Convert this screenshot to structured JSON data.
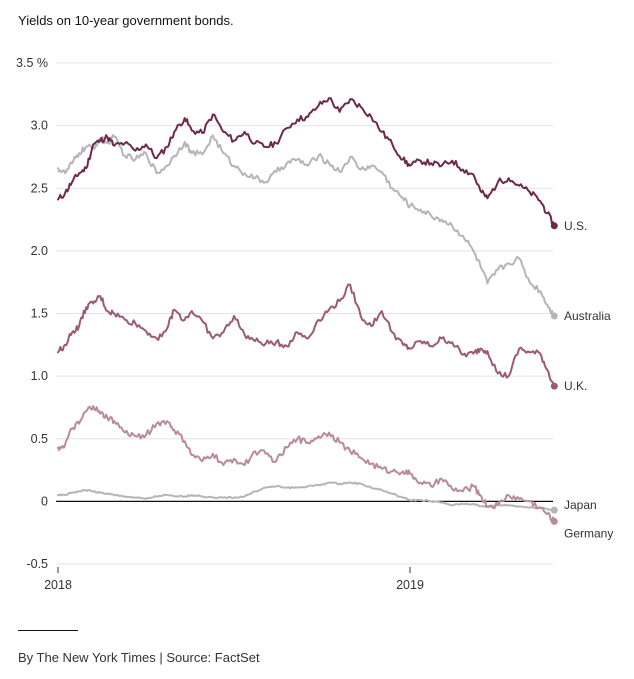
{
  "subtitle": "Yields on 10-year government bonds.",
  "credit": "By The New York Times | Source: FactSet",
  "chart_data": {
    "type": "line",
    "title": "Yields on 10-year government bonds.",
    "xlabel": "",
    "ylabel": "%",
    "ylim": [
      -0.5,
      3.5
    ],
    "xlim": [
      2018.0,
      2019.41
    ],
    "y_ticks": [
      {
        "value": 3.5,
        "label": "3.5 %"
      },
      {
        "value": 3.0,
        "label": "3.0"
      },
      {
        "value": 2.5,
        "label": "2.5"
      },
      {
        "value": 2.0,
        "label": "2.0"
      },
      {
        "value": 1.5,
        "label": "1.5"
      },
      {
        "value": 1.0,
        "label": "1.0"
      },
      {
        "value": 0.5,
        "label": "0.5"
      },
      {
        "value": 0,
        "label": "0"
      },
      {
        "value": -0.5,
        "label": "-0.5"
      }
    ],
    "x_ticks": [
      {
        "value": 2018.0,
        "label": "2018"
      },
      {
        "value": 2019.0,
        "label": "2019"
      }
    ],
    "grid": true,
    "legend": "direct labels at right end of each line",
    "series": [
      {
        "name": "U.S.",
        "color": "#6e2a4a",
        "x": [
          2018.0,
          2018.02,
          2018.04,
          2018.06,
          2018.08,
          2018.1,
          2018.12,
          2018.14,
          2018.16,
          2018.19,
          2018.22,
          2018.25,
          2018.28,
          2018.31,
          2018.33,
          2018.36,
          2018.38,
          2018.41,
          2018.44,
          2018.47,
          2018.5,
          2018.53,
          2018.56,
          2018.59,
          2018.62,
          2018.65,
          2018.68,
          2018.71,
          2018.74,
          2018.77,
          2018.8,
          2018.83,
          2018.86,
          2018.89,
          2018.92,
          2018.95,
          2018.98,
          2019.0,
          2019.03,
          2019.06,
          2019.09,
          2019.12,
          2019.15,
          2019.18,
          2019.2,
          2019.22,
          2019.25,
          2019.28,
          2019.31,
          2019.34,
          2019.37,
          2019.39,
          2019.41
        ],
        "values": [
          2.41,
          2.46,
          2.55,
          2.62,
          2.66,
          2.85,
          2.88,
          2.91,
          2.84,
          2.86,
          2.8,
          2.85,
          2.74,
          2.83,
          2.95,
          3.06,
          2.96,
          2.94,
          3.09,
          2.95,
          2.88,
          2.95,
          2.86,
          2.83,
          2.86,
          2.98,
          3.05,
          3.07,
          3.16,
          3.22,
          3.11,
          3.21,
          3.15,
          3.07,
          2.95,
          2.85,
          2.73,
          2.68,
          2.72,
          2.7,
          2.68,
          2.72,
          2.65,
          2.61,
          2.48,
          2.42,
          2.55,
          2.58,
          2.52,
          2.47,
          2.4,
          2.3,
          2.2
        ]
      },
      {
        "name": "Australia",
        "color": "#b5b5b5",
        "x": [
          2018.0,
          2018.02,
          2018.04,
          2018.06,
          2018.08,
          2018.1,
          2018.12,
          2018.14,
          2018.16,
          2018.19,
          2018.22,
          2018.25,
          2018.28,
          2018.31,
          2018.33,
          2018.36,
          2018.38,
          2018.41,
          2018.44,
          2018.47,
          2018.5,
          2018.53,
          2018.56,
          2018.59,
          2018.62,
          2018.65,
          2018.68,
          2018.71,
          2018.74,
          2018.77,
          2018.8,
          2018.83,
          2018.86,
          2018.89,
          2018.92,
          2018.95,
          2018.98,
          2019.0,
          2019.03,
          2019.06,
          2019.09,
          2019.12,
          2019.15,
          2019.18,
          2019.2,
          2019.22,
          2019.25,
          2019.28,
          2019.31,
          2019.34,
          2019.37,
          2019.39,
          2019.41
        ],
        "values": [
          2.66,
          2.62,
          2.7,
          2.78,
          2.83,
          2.82,
          2.9,
          2.86,
          2.91,
          2.76,
          2.73,
          2.78,
          2.62,
          2.68,
          2.76,
          2.87,
          2.78,
          2.77,
          2.92,
          2.78,
          2.68,
          2.62,
          2.58,
          2.55,
          2.63,
          2.7,
          2.73,
          2.68,
          2.76,
          2.7,
          2.63,
          2.75,
          2.65,
          2.68,
          2.63,
          2.5,
          2.42,
          2.36,
          2.33,
          2.28,
          2.25,
          2.2,
          2.12,
          2.0,
          1.88,
          1.74,
          1.85,
          1.9,
          1.94,
          1.75,
          1.68,
          1.57,
          1.48
        ]
      },
      {
        "name": "U.K.",
        "color": "#9c5a74",
        "x": [
          2018.0,
          2018.02,
          2018.04,
          2018.06,
          2018.08,
          2018.1,
          2018.12,
          2018.14,
          2018.16,
          2018.19,
          2018.22,
          2018.25,
          2018.28,
          2018.31,
          2018.33,
          2018.36,
          2018.38,
          2018.41,
          2018.44,
          2018.47,
          2018.5,
          2018.53,
          2018.56,
          2018.59,
          2018.62,
          2018.65,
          2018.68,
          2018.71,
          2018.74,
          2018.77,
          2018.8,
          2018.83,
          2018.86,
          2018.89,
          2018.92,
          2018.95,
          2018.98,
          2019.0,
          2019.03,
          2019.06,
          2019.09,
          2019.12,
          2019.15,
          2019.18,
          2019.2,
          2019.22,
          2019.25,
          2019.28,
          2019.31,
          2019.34,
          2019.37,
          2019.39,
          2019.41
        ],
        "values": [
          1.19,
          1.25,
          1.35,
          1.4,
          1.55,
          1.58,
          1.64,
          1.52,
          1.5,
          1.45,
          1.42,
          1.36,
          1.3,
          1.38,
          1.53,
          1.45,
          1.52,
          1.44,
          1.3,
          1.35,
          1.48,
          1.33,
          1.28,
          1.26,
          1.27,
          1.24,
          1.35,
          1.3,
          1.45,
          1.53,
          1.6,
          1.73,
          1.48,
          1.4,
          1.52,
          1.35,
          1.25,
          1.22,
          1.28,
          1.24,
          1.3,
          1.27,
          1.17,
          1.18,
          1.22,
          1.2,
          1.02,
          1.0,
          1.22,
          1.19,
          1.18,
          1.05,
          0.92
        ]
      },
      {
        "name": "Germany",
        "color": "#b98a9c",
        "x": [
          2018.0,
          2018.02,
          2018.04,
          2018.06,
          2018.08,
          2018.1,
          2018.12,
          2018.14,
          2018.16,
          2018.19,
          2018.22,
          2018.25,
          2018.28,
          2018.31,
          2018.33,
          2018.36,
          2018.38,
          2018.41,
          2018.44,
          2018.47,
          2018.5,
          2018.53,
          2018.56,
          2018.59,
          2018.62,
          2018.65,
          2018.68,
          2018.71,
          2018.74,
          2018.77,
          2018.8,
          2018.83,
          2018.86,
          2018.89,
          2018.92,
          2018.95,
          2018.98,
          2019.0,
          2019.03,
          2019.06,
          2019.09,
          2019.12,
          2019.15,
          2019.18,
          2019.2,
          2019.22,
          2019.25,
          2019.28,
          2019.31,
          2019.34,
          2019.37,
          2019.39,
          2019.41
        ],
        "values": [
          0.43,
          0.45,
          0.58,
          0.62,
          0.72,
          0.76,
          0.7,
          0.67,
          0.64,
          0.55,
          0.52,
          0.53,
          0.62,
          0.64,
          0.57,
          0.48,
          0.37,
          0.32,
          0.38,
          0.29,
          0.34,
          0.29,
          0.4,
          0.38,
          0.32,
          0.43,
          0.5,
          0.47,
          0.52,
          0.55,
          0.47,
          0.4,
          0.35,
          0.3,
          0.26,
          0.24,
          0.24,
          0.22,
          0.15,
          0.12,
          0.18,
          0.1,
          0.08,
          0.12,
          0.05,
          -0.04,
          -0.03,
          0.05,
          0.02,
          0.0,
          -0.05,
          -0.1,
          -0.16
        ]
      },
      {
        "name": "Japan",
        "color": "#b5b5b5",
        "x": [
          2018.0,
          2018.02,
          2018.04,
          2018.06,
          2018.08,
          2018.1,
          2018.12,
          2018.14,
          2018.16,
          2018.19,
          2018.22,
          2018.25,
          2018.28,
          2018.31,
          2018.33,
          2018.36,
          2018.38,
          2018.41,
          2018.44,
          2018.47,
          2018.5,
          2018.53,
          2018.56,
          2018.59,
          2018.62,
          2018.65,
          2018.68,
          2018.71,
          2018.74,
          2018.77,
          2018.8,
          2018.83,
          2018.86,
          2018.89,
          2018.92,
          2018.95,
          2018.98,
          2019.0,
          2019.03,
          2019.06,
          2019.09,
          2019.12,
          2019.15,
          2019.18,
          2019.2,
          2019.22,
          2019.25,
          2019.28,
          2019.31,
          2019.34,
          2019.37,
          2019.39,
          2019.41
        ],
        "values": [
          0.05,
          0.05,
          0.07,
          0.08,
          0.09,
          0.08,
          0.07,
          0.06,
          0.05,
          0.04,
          0.03,
          0.02,
          0.04,
          0.05,
          0.04,
          0.04,
          0.05,
          0.04,
          0.03,
          0.03,
          0.03,
          0.04,
          0.08,
          0.11,
          0.12,
          0.11,
          0.11,
          0.12,
          0.13,
          0.15,
          0.14,
          0.15,
          0.14,
          0.11,
          0.09,
          0.06,
          0.03,
          0.01,
          0.01,
          0.0,
          -0.01,
          -0.03,
          -0.02,
          -0.02,
          -0.04,
          -0.04,
          -0.03,
          -0.03,
          -0.04,
          -0.05,
          -0.05,
          -0.06,
          -0.07
        ]
      }
    ]
  }
}
